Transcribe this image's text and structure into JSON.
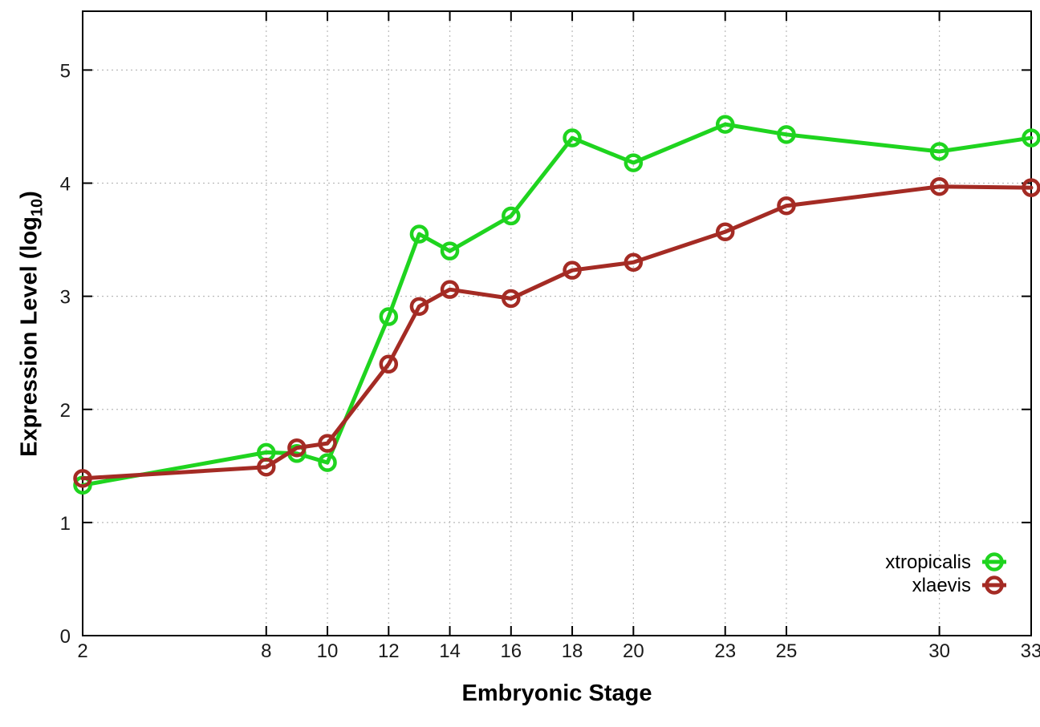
{
  "chart_data": {
    "type": "line",
    "title": "",
    "xlabel": "Embryonic Stage",
    "ylabel": "Expression Level (log10)",
    "ylabel_parts": {
      "prefix": "Expression Level (log",
      "sub": "10",
      "suffix": ")"
    },
    "x": [
      2,
      8,
      9,
      10,
      12,
      13,
      14,
      16,
      18,
      20,
      23,
      25,
      30,
      33
    ],
    "series": [
      {
        "name": "xtropicalis",
        "color": "#1fd41f",
        "marker": "open-circle",
        "values": [
          1.33,
          1.62,
          1.61,
          1.53,
          2.82,
          3.55,
          3.4,
          3.71,
          4.4,
          4.18,
          4.52,
          4.43,
          4.28,
          4.4
        ]
      },
      {
        "name": "xlaevis",
        "color": "#a42b24",
        "marker": "open-circle",
        "values": [
          1.39,
          1.49,
          1.66,
          1.7,
          2.4,
          2.91,
          3.06,
          2.98,
          3.23,
          3.3,
          3.57,
          3.8,
          3.97,
          3.96
        ]
      }
    ],
    "x_ticks": [
      2,
      8,
      10,
      12,
      14,
      16,
      18,
      20,
      23,
      25,
      30,
      33
    ],
    "y_ticks": [
      0,
      1,
      2,
      3,
      4,
      5
    ],
    "xlim": [
      2,
      33
    ],
    "ylim": [
      0,
      5.52
    ],
    "grid": true,
    "legend_position": "inside-bottom-right"
  },
  "colors": {
    "background": "#ffffff",
    "axis_border": "#000000",
    "grid": "#b9b9b9",
    "tick_label": "#1a1a1a",
    "legend_text": "#000000"
  }
}
